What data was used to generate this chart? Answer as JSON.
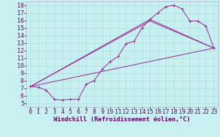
{
  "xlabel": "Windchill (Refroidissement éolien,°C)",
  "ylabel": "",
  "bg_color": "#c8f0f0",
  "line_color": "#993399",
  "grid_color": "#aadddd",
  "xlim": [
    -0.5,
    23.5
  ],
  "ylim": [
    4.5,
    18.5
  ],
  "xticks": [
    0,
    1,
    2,
    3,
    4,
    5,
    6,
    7,
    8,
    9,
    10,
    11,
    12,
    13,
    14,
    15,
    16,
    17,
    18,
    19,
    20,
    21,
    22,
    23
  ],
  "yticks": [
    5,
    6,
    7,
    8,
    9,
    10,
    11,
    12,
    13,
    14,
    15,
    16,
    17,
    18
  ],
  "line1_x": [
    0,
    1,
    2,
    3,
    4,
    5,
    6,
    7,
    8,
    9,
    10,
    11,
    12,
    13,
    14,
    15,
    16,
    17,
    18,
    19,
    20,
    21,
    22,
    23
  ],
  "line1_y": [
    7.2,
    7.1,
    6.7,
    5.5,
    5.4,
    5.5,
    5.5,
    7.5,
    8.0,
    9.5,
    10.5,
    11.2,
    12.9,
    13.2,
    15.0,
    16.1,
    17.0,
    17.8,
    18.0,
    17.5,
    15.9,
    15.9,
    15.2,
    12.3
  ],
  "line2_x": [
    0,
    23
  ],
  "line2_y": [
    7.2,
    12.3
  ],
  "line3_x": [
    0,
    15,
    23
  ],
  "line3_y": [
    7.2,
    16.1,
    12.3
  ],
  "line4_x": [
    0,
    15,
    23
  ],
  "line4_y": [
    7.2,
    15.9,
    12.3
  ],
  "font_size_xlabel": 6.5,
  "font_size_yticks": 6.0,
  "font_size_xticks": 6.0
}
